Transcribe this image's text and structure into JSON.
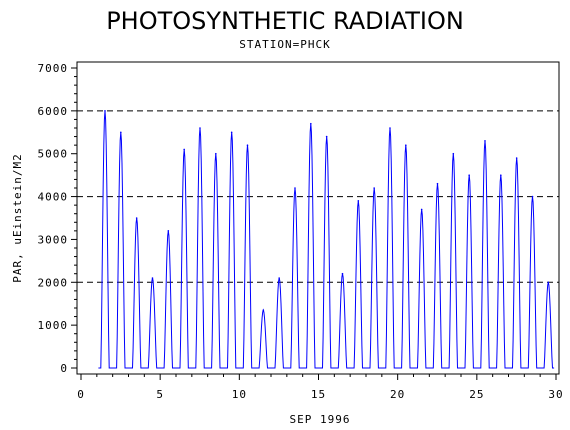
{
  "chart_data": {
    "type": "line",
    "title": "PHOTOSYNTHETIC RADIATION",
    "subtitle": "STATION=PHCK",
    "xlabel": "SEP 1996",
    "ylabel": "PAR, uEinstein/M2",
    "xlim": [
      0,
      30
    ],
    "ylim": [
      0,
      7000
    ],
    "x_ticks": [
      0,
      5,
      10,
      15,
      20,
      25,
      30
    ],
    "y_ticks": [
      0,
      1000,
      2000,
      3000,
      4000,
      5000,
      6000,
      7000
    ],
    "reference_lines": [
      2000,
      4000,
      6000
    ],
    "line_color": "#0000ff",
    "daily_peaks": [
      {
        "day": 1,
        "peak": 6000
      },
      {
        "day": 2,
        "peak": 5500
      },
      {
        "day": 3,
        "peak": 3500
      },
      {
        "day": 4,
        "peak": 2100
      },
      {
        "day": 5,
        "peak": 3200
      },
      {
        "day": 6,
        "peak": 5100
      },
      {
        "day": 7,
        "peak": 5600
      },
      {
        "day": 8,
        "peak": 5000
      },
      {
        "day": 9,
        "peak": 5500
      },
      {
        "day": 10,
        "peak": 5200
      },
      {
        "day": 11,
        "peak": 1350
      },
      {
        "day": 12,
        "peak": 2100
      },
      {
        "day": 13,
        "peak": 4200
      },
      {
        "day": 14,
        "peak": 5700
      },
      {
        "day": 15,
        "peak": 5400
      },
      {
        "day": 16,
        "peak": 2200
      },
      {
        "day": 17,
        "peak": 3900
      },
      {
        "day": 18,
        "peak": 4200
      },
      {
        "day": 19,
        "peak": 5600
      },
      {
        "day": 20,
        "peak": 5200
      },
      {
        "day": 21,
        "peak": 3700
      },
      {
        "day": 22,
        "peak": 4300
      },
      {
        "day": 23,
        "peak": 5000
      },
      {
        "day": 24,
        "peak": 4500
      },
      {
        "day": 25,
        "peak": 5300
      },
      {
        "day": 26,
        "peak": 4500
      },
      {
        "day": 27,
        "peak": 4900
      },
      {
        "day": 28,
        "peak": 4000
      },
      {
        "day": 29,
        "peak": 2000
      }
    ]
  }
}
